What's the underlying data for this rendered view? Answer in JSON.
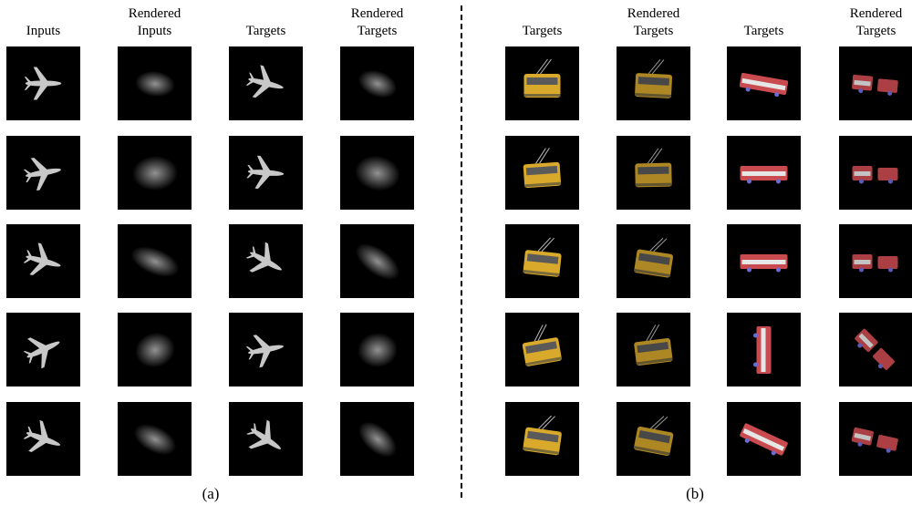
{
  "panel_a": {
    "caption": "(a)",
    "headers": [
      {
        "line1": "",
        "line2": "Inputs"
      },
      {
        "line1": "Rendered",
        "line2": "Inputs"
      },
      {
        "line1": "",
        "line2": "Targets"
      },
      {
        "line1": "Rendered",
        "line2": "Targets"
      }
    ],
    "rows": [
      [
        "plane",
        "blob",
        "plane",
        "blob"
      ],
      [
        "plane",
        "blob",
        "plane",
        "blob"
      ],
      [
        "plane",
        "blob",
        "plane",
        "blob"
      ],
      [
        "plane",
        "blob",
        "plane",
        "blob"
      ],
      [
        "plane",
        "blob",
        "plane",
        "blob"
      ]
    ]
  },
  "panel_b": {
    "caption": "(b)",
    "headers": [
      {
        "line1": "",
        "line2": "Targets"
      },
      {
        "line1": "Rendered",
        "line2": "Targets"
      },
      {
        "line1": "",
        "line2": "Targets"
      },
      {
        "line1": "Rendered",
        "line2": "Targets"
      }
    ],
    "rows": [
      [
        "trolleybus",
        "trolleybus-render",
        "red-bus",
        "red-bus-render"
      ],
      [
        "trolleybus",
        "trolleybus-render",
        "red-bus",
        "red-bus-render"
      ],
      [
        "trolleybus",
        "trolleybus-render",
        "red-bus",
        "red-bus-render"
      ],
      [
        "trolleybus",
        "trolleybus-render",
        "red-bus",
        "red-bus-render"
      ],
      [
        "trolleybus",
        "trolleybus-render",
        "red-bus",
        "red-bus-render"
      ]
    ]
  },
  "colors": {
    "background": "#000000",
    "plane": "#c8c8c8",
    "blob": "#9a9a9a",
    "trolleybus": "#d9a92c",
    "red_bus": "#c94a4f"
  }
}
